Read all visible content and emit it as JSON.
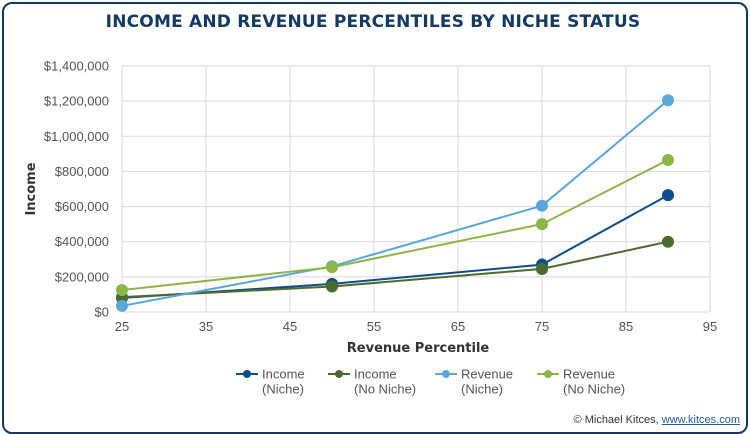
{
  "chart_data": {
    "type": "line",
    "title": "INCOME AND REVENUE PERCENTILES BY NICHE STATUS",
    "xlabel": "Revenue Percentile",
    "ylabel": "Income",
    "xlim": [
      25,
      95
    ],
    "ylim": [
      0,
      1400000
    ],
    "x_ticks": [
      "25",
      "35",
      "45",
      "55",
      "65",
      "75",
      "85",
      "95"
    ],
    "y_ticks": [
      "$0",
      "$200,000",
      "$400,000",
      "$600,000",
      "$800,000",
      "$1,000,000",
      "$1,200,000",
      "$1,400,000"
    ],
    "grid": true,
    "legend_position": "bottom",
    "x": [
      25,
      50,
      75,
      90
    ],
    "series": [
      {
        "name_line1": "Income",
        "name_line2": "(Niche)",
        "color": "#0e4d8c",
        "values": [
          80000,
          160000,
          270000,
          665000
        ]
      },
      {
        "name_line1": "Income",
        "name_line2": "(No Niche)",
        "color": "#4a6b2d",
        "values": [
          85000,
          145000,
          245000,
          400000
        ]
      },
      {
        "name_line1": "Revenue",
        "name_line2": "(Niche)",
        "color": "#5aa7dc",
        "values": [
          35000,
          260000,
          605000,
          1205000
        ]
      },
      {
        "name_line1": "Revenue",
        "name_line2": "(No Niche)",
        "color": "#8db548",
        "values": [
          125000,
          255000,
          500000,
          865000
        ]
      }
    ]
  },
  "credit": {
    "prefix": "© Michael Kitces, ",
    "link": "www.kitces.com"
  }
}
